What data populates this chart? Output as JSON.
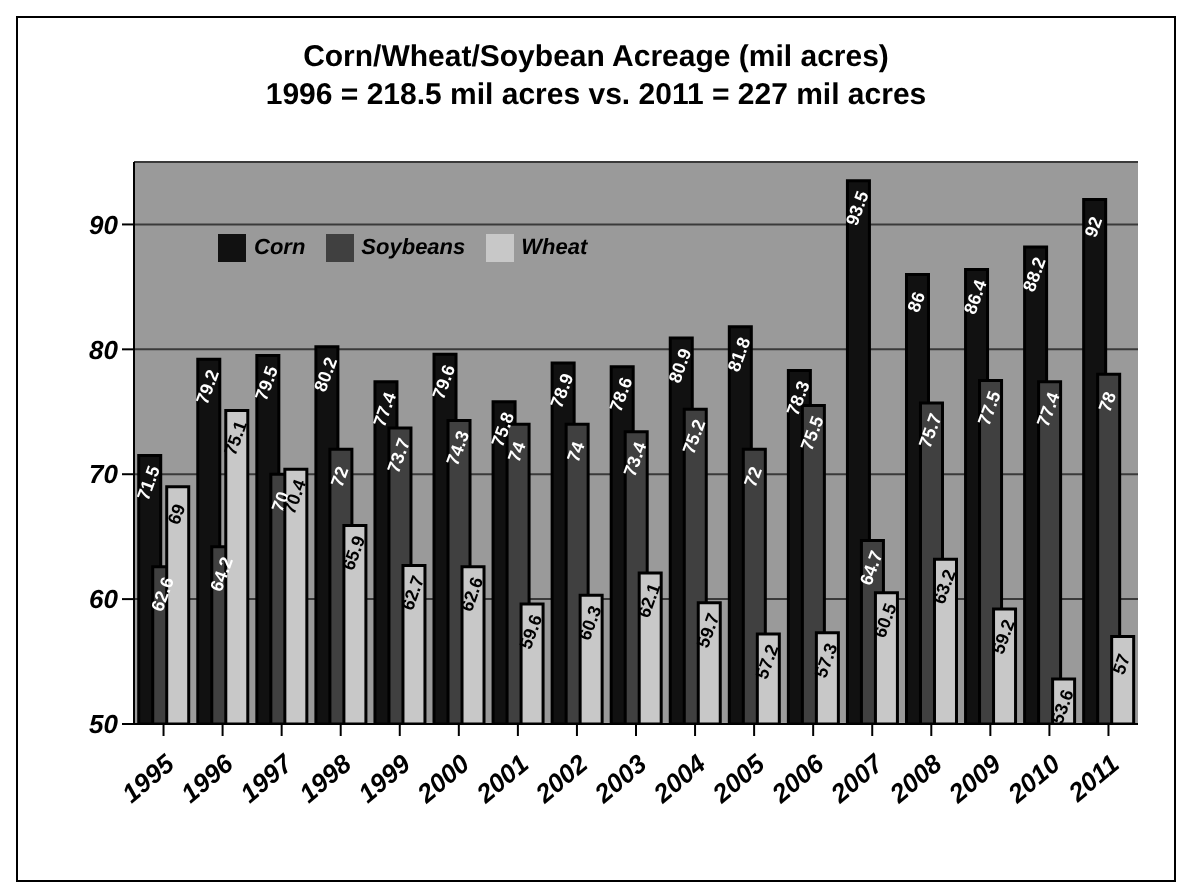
{
  "chart_data": {
    "type": "bar",
    "title": "Corn/Wheat/Soybean Acreage (mil acres)",
    "subtitle": "1996 = 218.5 mil acres vs. 2011 = 227 mil acres",
    "categories": [
      "1995",
      "1996",
      "1997",
      "1998",
      "1999",
      "2000",
      "2001",
      "2002",
      "2003",
      "2004",
      "2005",
      "2006",
      "2007",
      "2008",
      "2009",
      "2010",
      "2011"
    ],
    "series": [
      {
        "name": "Corn",
        "color": "#111111",
        "values": [
          71.5,
          79.2,
          79.5,
          80.2,
          77.4,
          79.6,
          75.8,
          78.9,
          78.6,
          80.9,
          81.8,
          78.3,
          93.5,
          86.0,
          86.4,
          88.2,
          92
        ]
      },
      {
        "name": "Soybeans",
        "color": "#404040",
        "values": [
          62.6,
          64.2,
          70.0,
          72,
          73.7,
          74.3,
          74,
          74,
          73.4,
          75.2,
          72,
          75.5,
          64.7,
          75.7,
          77.5,
          77.4,
          78
        ]
      },
      {
        "name": "Wheat",
        "color": "#c8c8c8",
        "values": [
          69.0,
          75.1,
          70.4,
          65.9,
          62.7,
          62.6,
          59.6,
          60.3,
          62.1,
          59.7,
          57.2,
          57.3,
          60.5,
          63.2,
          59.2,
          53.6,
          57
        ]
      }
    ],
    "ylim": [
      50,
      95
    ],
    "yticks": [
      50,
      60,
      70,
      80,
      90
    ],
    "grid": "y",
    "legend": "top left",
    "data_labels": true
  }
}
